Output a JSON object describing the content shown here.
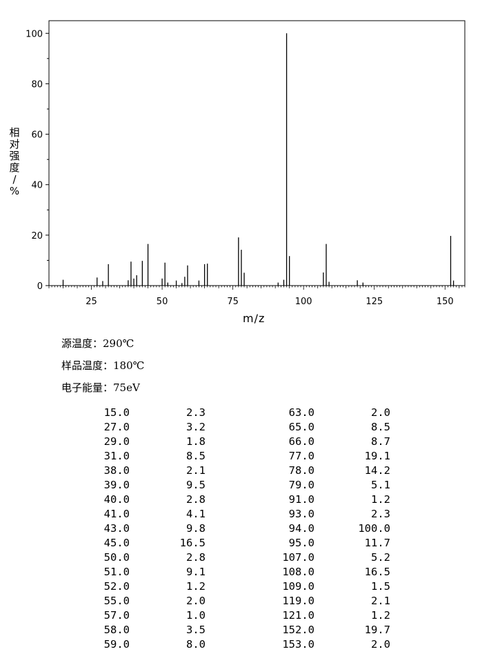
{
  "chart_data": {
    "type": "bar",
    "xlabel": "m/z",
    "ylabel_chars": [
      "相",
      "对",
      "强",
      "度",
      "/",
      "%"
    ],
    "xlim": [
      10,
      157
    ],
    "ylim": [
      0,
      105
    ],
    "x_ticks": [
      25,
      50,
      75,
      100,
      125,
      150
    ],
    "y_ticks": [
      0,
      20,
      40,
      60,
      80,
      100
    ],
    "grid": false,
    "peaks": [
      {
        "mz": 15,
        "intensity": 2.3
      },
      {
        "mz": 27,
        "intensity": 3.2
      },
      {
        "mz": 29,
        "intensity": 1.8
      },
      {
        "mz": 31,
        "intensity": 8.5
      },
      {
        "mz": 38,
        "intensity": 2.1
      },
      {
        "mz": 39,
        "intensity": 9.5
      },
      {
        "mz": 40,
        "intensity": 2.8
      },
      {
        "mz": 41,
        "intensity": 4.1
      },
      {
        "mz": 43,
        "intensity": 9.8
      },
      {
        "mz": 45,
        "intensity": 16.5
      },
      {
        "mz": 50,
        "intensity": 2.8
      },
      {
        "mz": 51,
        "intensity": 9.1
      },
      {
        "mz": 52,
        "intensity": 1.2
      },
      {
        "mz": 55,
        "intensity": 2.0
      },
      {
        "mz": 57,
        "intensity": 1.0
      },
      {
        "mz": 58,
        "intensity": 3.5
      },
      {
        "mz": 59,
        "intensity": 8.0
      },
      {
        "mz": 63,
        "intensity": 2.0
      },
      {
        "mz": 65,
        "intensity": 8.5
      },
      {
        "mz": 66,
        "intensity": 8.7
      },
      {
        "mz": 77,
        "intensity": 19.1
      },
      {
        "mz": 78,
        "intensity": 14.2
      },
      {
        "mz": 79,
        "intensity": 5.1
      },
      {
        "mz": 91,
        "intensity": 1.2
      },
      {
        "mz": 93,
        "intensity": 2.3
      },
      {
        "mz": 94,
        "intensity": 100.0
      },
      {
        "mz": 95,
        "intensity": 11.7
      },
      {
        "mz": 107,
        "intensity": 5.2
      },
      {
        "mz": 108,
        "intensity": 16.5
      },
      {
        "mz": 109,
        "intensity": 1.5
      },
      {
        "mz": 119,
        "intensity": 2.1
      },
      {
        "mz": 121,
        "intensity": 1.2
      },
      {
        "mz": 152,
        "intensity": 19.7
      },
      {
        "mz": 153,
        "intensity": 2.0
      }
    ]
  },
  "conditions": {
    "source_temp": "源温度：290℃",
    "sample_temp": "样品温度：180℃",
    "electron_energy": "电子能量：75eV"
  },
  "peak_table": {
    "left": [
      [
        "15.0",
        "2.3"
      ],
      [
        "27.0",
        "3.2"
      ],
      [
        "29.0",
        "1.8"
      ],
      [
        "31.0",
        "8.5"
      ],
      [
        "38.0",
        "2.1"
      ],
      [
        "39.0",
        "9.5"
      ],
      [
        "40.0",
        "2.8"
      ],
      [
        "41.0",
        "4.1"
      ],
      [
        "43.0",
        "9.8"
      ],
      [
        "45.0",
        "16.5"
      ],
      [
        "50.0",
        "2.8"
      ],
      [
        "51.0",
        "9.1"
      ],
      [
        "52.0",
        "1.2"
      ],
      [
        "55.0",
        "2.0"
      ],
      [
        "57.0",
        "1.0"
      ],
      [
        "58.0",
        "3.5"
      ],
      [
        "59.0",
        "8.0"
      ]
    ],
    "right": [
      [
        "63.0",
        "2.0"
      ],
      [
        "65.0",
        "8.5"
      ],
      [
        "66.0",
        "8.7"
      ],
      [
        "77.0",
        "19.1"
      ],
      [
        "78.0",
        "14.2"
      ],
      [
        "79.0",
        "5.1"
      ],
      [
        "91.0",
        "1.2"
      ],
      [
        "93.0",
        "2.3"
      ],
      [
        "94.0",
        "100.0"
      ],
      [
        "95.0",
        "11.7"
      ],
      [
        "107.0",
        "5.2"
      ],
      [
        "108.0",
        "16.5"
      ],
      [
        "109.0",
        "1.5"
      ],
      [
        "119.0",
        "2.1"
      ],
      [
        "121.0",
        "1.2"
      ],
      [
        "152.0",
        "19.7"
      ],
      [
        "153.0",
        "2.0"
      ]
    ]
  }
}
